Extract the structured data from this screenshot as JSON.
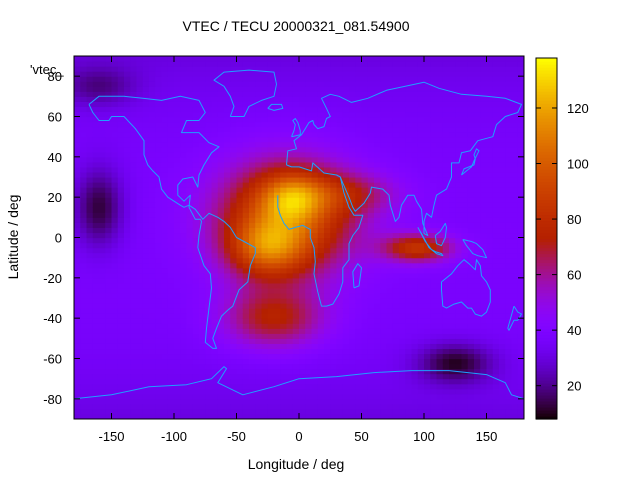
{
  "chart_data": {
    "type": "heatmap",
    "title": "VTEC / TECU 20000321_081.54900",
    "xlabel": "Longitude / deg",
    "ylabel": "Latitude / deg",
    "legend_label": "'vtec_",
    "xlim": [
      -180,
      180
    ],
    "ylim": [
      -90,
      90
    ],
    "xticks": [
      -150,
      -100,
      -50,
      0,
      50,
      100,
      150
    ],
    "yticks": [
      -80,
      -60,
      -40,
      -20,
      0,
      20,
      40,
      60,
      80
    ],
    "colorbar": {
      "range": [
        8,
        138
      ],
      "ticks": [
        20,
        40,
        60,
        80,
        100,
        120
      ]
    },
    "grid_resolution_deg": [
      5,
      2.5
    ],
    "background_tec": 38,
    "features": [
      {
        "lon": -10,
        "lat": 10,
        "peak": 60,
        "sx": 55,
        "sy": 28
      },
      {
        "lon": -25,
        "lat": -5,
        "peak": 40,
        "sx": 30,
        "sy": 14
      },
      {
        "lon": -5,
        "lat": 20,
        "peak": 35,
        "sx": 25,
        "sy": 12
      },
      {
        "lon": -20,
        "lat": -40,
        "peak": 35,
        "sx": 40,
        "sy": 15
      },
      {
        "lon": 95,
        "lat": -5,
        "peak": 45,
        "sx": 28,
        "sy": 7
      },
      {
        "lon": 40,
        "lat": 22,
        "peak": 20,
        "sx": 40,
        "sy": 10
      },
      {
        "lon": -160,
        "lat": 15,
        "peak": -25,
        "sx": 20,
        "sy": 20
      },
      {
        "lon": 125,
        "lat": -62,
        "peak": -25,
        "sx": 30,
        "sy": 10
      },
      {
        "lon": -160,
        "lat": 75,
        "peak": -15,
        "sx": 30,
        "sy": 10
      }
    ],
    "coastline_color": "#1ea0ff"
  }
}
